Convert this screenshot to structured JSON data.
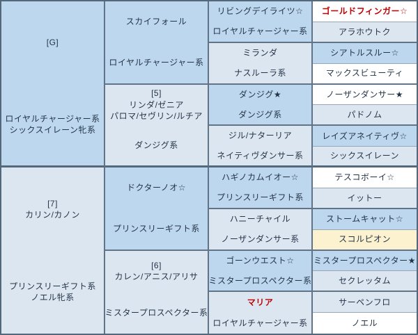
{
  "chart_type": "pedigree-table",
  "colors": {
    "medium_blue": "#bdd7ee",
    "light_blue": "#dce6f1",
    "white": "#ffffff",
    "cream_highlight": "#fcf2d0",
    "red_text": "#c00000",
    "border_dark": "#54687c",
    "text": "#243447"
  },
  "col1": [
    {
      "top": [
        "[G]"
      ],
      "bottom": [
        "ロイヤルチャージャー系",
        "シックスイレーン牝系"
      ]
    },
    {
      "top": [
        "[7]",
        "カリン/カノン"
      ],
      "bottom": [
        "プリンスリーギフト系",
        "ノエル牝系"
      ]
    }
  ],
  "col2": [
    {
      "top": [
        "スカイフォール"
      ],
      "bottom": [
        "ロイヤルチャージャー系"
      ]
    },
    {
      "top": [
        "[5]",
        "リンダ/ゼニア",
        "パロマ/セヴリン/ルチア"
      ],
      "bottom": [
        "ダンジグ系"
      ]
    },
    {
      "top": [
        "ドクターノオ☆"
      ],
      "bottom": [
        "プリンスリーギフト系"
      ]
    },
    {
      "top": [
        "[6]",
        "カレン/アニス/アリサ"
      ],
      "bottom": [
        "ミスタープロスペクター系"
      ]
    }
  ],
  "col3": [
    {
      "top": [
        "リビングデイライツ☆"
      ],
      "bottom": [
        "ロイヤルチャージャー系"
      ]
    },
    {
      "top": [
        "ミランダ"
      ],
      "bottom": [
        "ナスルーラ系"
      ]
    },
    {
      "top": [
        "ダンジグ★"
      ],
      "bottom": [
        "ダンジグ系"
      ]
    },
    {
      "top": [
        "ジル/ナターリア"
      ],
      "bottom": [
        "ネイティヴダンサー系"
      ]
    },
    {
      "top": [
        "ハギノカムイオー☆"
      ],
      "bottom": [
        "プリンスリーギフト系"
      ]
    },
    {
      "top": [
        "ハニーチャイル"
      ],
      "bottom": [
        "ノーザンダンサー系"
      ]
    },
    {
      "top": [
        "ゴーンウエスト☆"
      ],
      "bottom": [
        "ミスタープロスペクター系"
      ]
    },
    {
      "top": [
        "マリア"
      ],
      "bottom": [
        "ロイヤルチャージャー系"
      ]
    }
  ],
  "col4": [
    "ゴールドフィンガー☆",
    "アラホウトク",
    "シアトルスルー☆",
    "マックスビューティ",
    "ノーザンダンサー★",
    "パドノム",
    "レイズアネイティヴ☆",
    "シックスイレーン",
    "テスコボーイ☆",
    "イットー",
    "ストームキャット☆",
    "スコルピオン",
    "ミスタープロスペクター★",
    "セクレッタム",
    "サーペンフロ",
    "ノエル"
  ]
}
